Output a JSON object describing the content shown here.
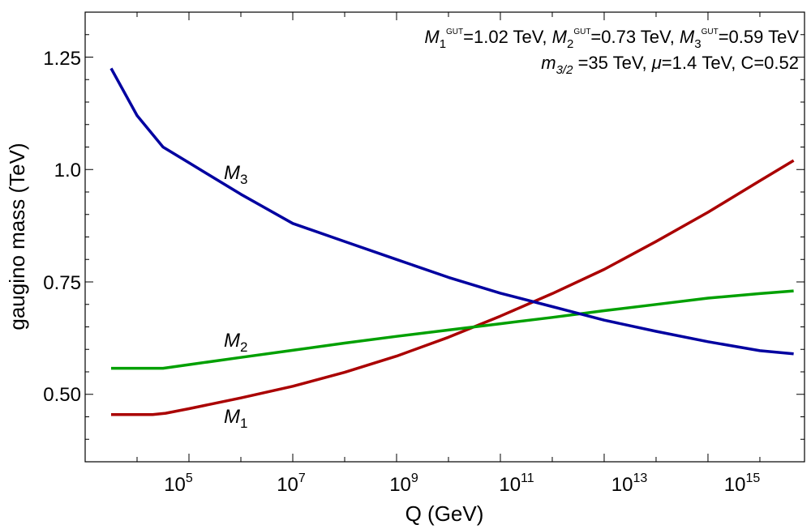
{
  "chart_data": {
    "type": "line",
    "xlabel": "Q (GeV)",
    "ylabel": "gaugino mass (TeV)",
    "x_scale": "log",
    "x_exponent_ticks": [
      5,
      7,
      9,
      11,
      13,
      15
    ],
    "x_tick_base": "10",
    "xlim": [
      1000,
      10000000000000000
    ],
    "y_ticks": [
      "0.50",
      "0.75",
      "1.0",
      "1.25"
    ],
    "ylim": [
      0.35,
      1.35
    ],
    "annotation": {
      "line1": {
        "m1": "M",
        "m1_sub": "1",
        "m1_sup": "GUT",
        "m1_val": "=1.02 TeV, ",
        "m2": "M",
        "m2_sub": "2",
        "m2_sup": "GUT",
        "m2_val": "=0.73 TeV, ",
        "m3": "M",
        "m3_sub": "3",
        "m3_sup": "GUT",
        "m3_val": "=0.59 TeV"
      },
      "line2": {
        "m32": "m",
        "m32_sub": "3/2",
        "m32_val": " =35 TeV, ",
        "mu": "μ",
        "mu_val": "=1.4 TeV, C=0.52"
      }
    },
    "curve_labels": [
      {
        "series": "M3",
        "text": "M",
        "sub": "3"
      },
      {
        "series": "M2",
        "text": "M",
        "sub": "2"
      },
      {
        "series": "M1",
        "text": "M",
        "sub": "1"
      }
    ],
    "series": [
      {
        "name": "M1",
        "color": "#aa0000",
        "points": [
          [
            3.5,
            0.455
          ],
          [
            4.3,
            0.455
          ],
          [
            4.55,
            0.458
          ],
          [
            5,
            0.468
          ],
          [
            6,
            0.492
          ],
          [
            7,
            0.518
          ],
          [
            8,
            0.549
          ],
          [
            9,
            0.585
          ],
          [
            10,
            0.627
          ],
          [
            11,
            0.674
          ],
          [
            12,
            0.724
          ],
          [
            13,
            0.778
          ],
          [
            14,
            0.84
          ],
          [
            15,
            0.905
          ],
          [
            16,
            0.975
          ],
          [
            16.65,
            1.02
          ]
        ]
      },
      {
        "name": "M2",
        "color": "#00a000",
        "points": [
          [
            3.5,
            0.558
          ],
          [
            4.5,
            0.558
          ],
          [
            5,
            0.566
          ],
          [
            6,
            0.582
          ],
          [
            7,
            0.598
          ],
          [
            8,
            0.614
          ],
          [
            9,
            0.629
          ],
          [
            10,
            0.643
          ],
          [
            11,
            0.657
          ],
          [
            12,
            0.671
          ],
          [
            13,
            0.686
          ],
          [
            14,
            0.7
          ],
          [
            15,
            0.714
          ],
          [
            16,
            0.724
          ],
          [
            16.65,
            0.73
          ]
        ]
      },
      {
        "name": "M3",
        "color": "#0000a0",
        "points": [
          [
            3.5,
            1.225
          ],
          [
            4,
            1.12
          ],
          [
            4.5,
            1.05
          ],
          [
            5,
            1.015
          ],
          [
            6,
            0.945
          ],
          [
            7,
            0.88
          ],
          [
            8,
            0.84
          ],
          [
            9,
            0.8
          ],
          [
            10,
            0.76
          ],
          [
            11,
            0.725
          ],
          [
            12,
            0.695
          ],
          [
            13,
            0.665
          ],
          [
            14,
            0.64
          ],
          [
            15,
            0.617
          ],
          [
            16,
            0.597
          ],
          [
            16.65,
            0.59
          ]
        ]
      }
    ]
  }
}
